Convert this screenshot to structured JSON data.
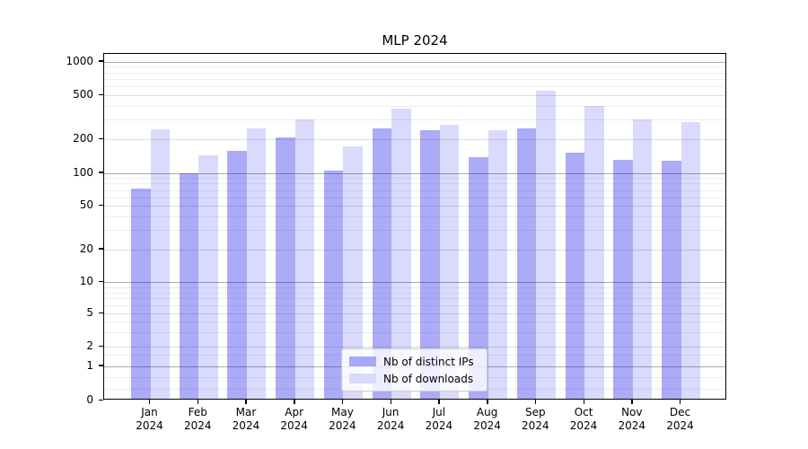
{
  "figure": {
    "title": "MLP 2024"
  },
  "chart_data": {
    "type": "bar",
    "title": "MLP 2024",
    "categories": [
      "Jan\n2024",
      "Feb\n2024",
      "Mar\n2024",
      "Apr\n2024",
      "May\n2024",
      "Jun\n2024",
      "Jul\n2024",
      "Aug\n2024",
      "Sep\n2024",
      "Oct\n2024",
      "Nov\n2024",
      "Dec\n2024"
    ],
    "series": [
      {
        "name": "Nb of distinct IPs",
        "color": "#a8a8f7",
        "fill": "rgba(10,10,235,0.34)",
        "values": [
          72,
          100,
          158,
          210,
          105,
          250,
          240,
          140,
          250,
          152,
          132,
          130
        ]
      },
      {
        "name": "Nb of downloads",
        "color": "#d9d9fb",
        "fill": "rgba(10,10,235,0.15)",
        "values": [
          245,
          145,
          250,
          305,
          175,
          380,
          270,
          240,
          550,
          400,
          300,
          285
        ]
      }
    ],
    "xlabel": "",
    "ylabel": "",
    "yscale": "symlog",
    "yticks": [
      0,
      1,
      2,
      5,
      10,
      20,
      50,
      100,
      200,
      500,
      1000
    ],
    "ylim": [
      0,
      1180
    ],
    "grid": true,
    "legend_position": "lower center"
  }
}
